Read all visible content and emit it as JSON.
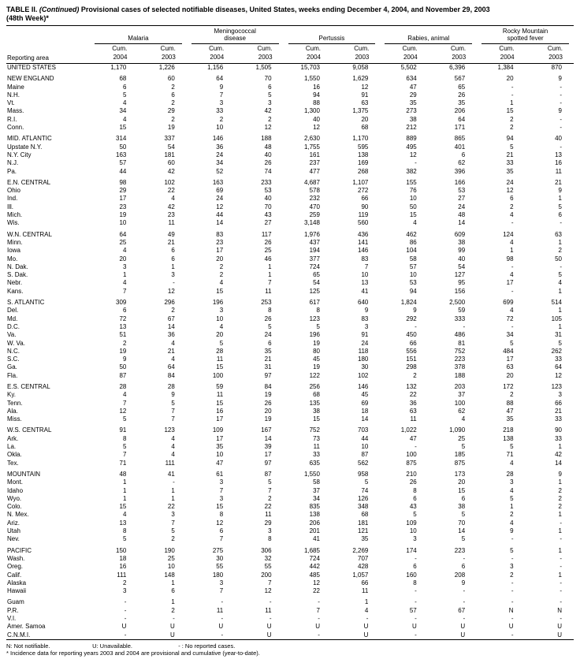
{
  "title": {
    "table_label": "TABLE II.",
    "continued": "(Continued)",
    "text": "Provisional cases of selected notifiable diseases, United States, weeks ending December 4, 2004, and November 29, 2003",
    "week": "(48th Week)*"
  },
  "header": {
    "reporting_area": "Reporting area",
    "cum_label": "Cum.",
    "diseases": [
      {
        "name": "malaria",
        "lines": [
          "Malaria"
        ],
        "years": [
          "2004",
          "2003"
        ]
      },
      {
        "name": "meningococcal-disease",
        "lines": [
          "Meningococcal",
          "disease"
        ],
        "years": [
          "2004",
          "2003"
        ]
      },
      {
        "name": "pertussis",
        "lines": [
          "Pertussis"
        ],
        "years": [
          "2004",
          "2003"
        ]
      },
      {
        "name": "rabies-animal",
        "lines": [
          "Rabies, animal"
        ],
        "years": [
          "2004",
          "2003"
        ]
      },
      {
        "name": "rocky-mountain-spotted-fever",
        "lines": [
          "Rocky Mountain",
          "spotted fever"
        ],
        "years": [
          "2004",
          "2003"
        ]
      }
    ]
  },
  "groups": [
    {
      "rows": [
        {
          "area": "UNITED STATES",
          "v": [
            "1,170",
            "1,226",
            "1,156",
            "1,505",
            "15,703",
            "9,058",
            "5,502",
            "6,396",
            "1,384",
            "870"
          ]
        }
      ]
    },
    {
      "rows": [
        {
          "area": "NEW ENGLAND",
          "v": [
            "68",
            "60",
            "64",
            "70",
            "1,550",
            "1,629",
            "634",
            "567",
            "20",
            "9"
          ]
        },
        {
          "area": "Maine",
          "v": [
            "6",
            "2",
            "9",
            "6",
            "16",
            "12",
            "47",
            "65",
            "-",
            "-"
          ]
        },
        {
          "area": "N.H.",
          "v": [
            "5",
            "6",
            "7",
            "5",
            "94",
            "91",
            "29",
            "26",
            "-",
            "-"
          ]
        },
        {
          "area": "Vt.",
          "v": [
            "4",
            "2",
            "3",
            "3",
            "88",
            "63",
            "35",
            "35",
            "1",
            "-"
          ]
        },
        {
          "area": "Mass.",
          "v": [
            "34",
            "29",
            "33",
            "42",
            "1,300",
            "1,375",
            "273",
            "206",
            "15",
            "9"
          ]
        },
        {
          "area": "R.I.",
          "v": [
            "4",
            "2",
            "2",
            "2",
            "40",
            "20",
            "38",
            "64",
            "2",
            "-"
          ]
        },
        {
          "area": "Conn.",
          "v": [
            "15",
            "19",
            "10",
            "12",
            "12",
            "68",
            "212",
            "171",
            "2",
            "-"
          ]
        }
      ]
    },
    {
      "rows": [
        {
          "area": "MID. ATLANTIC",
          "v": [
            "314",
            "337",
            "146",
            "188",
            "2,630",
            "1,170",
            "889",
            "865",
            "94",
            "40"
          ]
        },
        {
          "area": "Upstate N.Y.",
          "v": [
            "50",
            "54",
            "36",
            "48",
            "1,755",
            "595",
            "495",
            "401",
            "5",
            "-"
          ]
        },
        {
          "area": "N.Y. City",
          "v": [
            "163",
            "181",
            "24",
            "40",
            "161",
            "138",
            "12",
            "6",
            "21",
            "13"
          ]
        },
        {
          "area": "N.J.",
          "v": [
            "57",
            "60",
            "34",
            "26",
            "237",
            "169",
            "-",
            "62",
            "33",
            "16"
          ]
        },
        {
          "area": "Pa.",
          "v": [
            "44",
            "42",
            "52",
            "74",
            "477",
            "268",
            "382",
            "396",
            "35",
            "11"
          ]
        }
      ]
    },
    {
      "rows": [
        {
          "area": "E.N. CENTRAL",
          "v": [
            "98",
            "102",
            "163",
            "233",
            "4,687",
            "1,107",
            "155",
            "166",
            "24",
            "21"
          ]
        },
        {
          "area": "Ohio",
          "v": [
            "29",
            "22",
            "69",
            "53",
            "578",
            "272",
            "76",
            "53",
            "12",
            "9"
          ]
        },
        {
          "area": "Ind.",
          "v": [
            "17",
            "4",
            "24",
            "40",
            "232",
            "66",
            "10",
            "27",
            "6",
            "1"
          ]
        },
        {
          "area": "Ill.",
          "v": [
            "23",
            "42",
            "12",
            "70",
            "470",
            "90",
            "50",
            "24",
            "2",
            "5"
          ]
        },
        {
          "area": "Mich.",
          "v": [
            "19",
            "23",
            "44",
            "43",
            "259",
            "119",
            "15",
            "48",
            "4",
            "6"
          ]
        },
        {
          "area": "Wis.",
          "v": [
            "10",
            "11",
            "14",
            "27",
            "3,148",
            "560",
            "4",
            "14",
            "-",
            "-"
          ]
        }
      ]
    },
    {
      "rows": [
        {
          "area": "W.N. CENTRAL",
          "v": [
            "64",
            "49",
            "83",
            "117",
            "1,976",
            "436",
            "462",
            "609",
            "124",
            "63"
          ]
        },
        {
          "area": "Minn.",
          "v": [
            "25",
            "21",
            "23",
            "26",
            "437",
            "141",
            "86",
            "38",
            "4",
            "1"
          ]
        },
        {
          "area": "Iowa",
          "v": [
            "4",
            "6",
            "17",
            "25",
            "194",
            "146",
            "104",
            "99",
            "1",
            "2"
          ]
        },
        {
          "area": "Mo.",
          "v": [
            "20",
            "6",
            "20",
            "46",
            "377",
            "83",
            "58",
            "40",
            "98",
            "50"
          ]
        },
        {
          "area": "N. Dak.",
          "v": [
            "3",
            "1",
            "2",
            "1",
            "724",
            "7",
            "57",
            "54",
            "-",
            "-"
          ]
        },
        {
          "area": "S. Dak.",
          "v": [
            "1",
            "3",
            "2",
            "1",
            "65",
            "10",
            "10",
            "127",
            "4",
            "5"
          ]
        },
        {
          "area": "Nebr.",
          "v": [
            "4",
            "-",
            "4",
            "7",
            "54",
            "13",
            "53",
            "95",
            "17",
            "4"
          ]
        },
        {
          "area": "Kans.",
          "v": [
            "7",
            "12",
            "15",
            "11",
            "125",
            "41",
            "94",
            "156",
            "-",
            "1"
          ]
        }
      ]
    },
    {
      "rows": [
        {
          "area": "S. ATLANTIC",
          "v": [
            "309",
            "296",
            "196",
            "253",
            "617",
            "640",
            "1,824",
            "2,500",
            "699",
            "514"
          ]
        },
        {
          "area": "Del.",
          "v": [
            "6",
            "2",
            "3",
            "8",
            "8",
            "9",
            "9",
            "59",
            "4",
            "1"
          ]
        },
        {
          "area": "Md.",
          "v": [
            "72",
            "67",
            "10",
            "26",
            "123",
            "83",
            "292",
            "333",
            "72",
            "105"
          ]
        },
        {
          "area": "D.C.",
          "v": [
            "13",
            "14",
            "4",
            "5",
            "5",
            "3",
            "-",
            "-",
            "-",
            "1"
          ]
        },
        {
          "area": "Va.",
          "v": [
            "51",
            "36",
            "20",
            "24",
            "196",
            "91",
            "450",
            "486",
            "34",
            "31"
          ]
        },
        {
          "area": "W. Va.",
          "v": [
            "2",
            "4",
            "5",
            "6",
            "19",
            "24",
            "66",
            "81",
            "5",
            "5"
          ]
        },
        {
          "area": "N.C.",
          "v": [
            "19",
            "21",
            "28",
            "35",
            "80",
            "118",
            "556",
            "752",
            "484",
            "262"
          ]
        },
        {
          "area": "S.C.",
          "v": [
            "9",
            "4",
            "11",
            "21",
            "45",
            "180",
            "151",
            "223",
            "17",
            "33"
          ]
        },
        {
          "area": "Ga.",
          "v": [
            "50",
            "64",
            "15",
            "31",
            "19",
            "30",
            "298",
            "378",
            "63",
            "64"
          ]
        },
        {
          "area": "Fla.",
          "v": [
            "87",
            "84",
            "100",
            "97",
            "122",
            "102",
            "2",
            "188",
            "20",
            "12"
          ]
        }
      ]
    },
    {
      "rows": [
        {
          "area": "E.S. CENTRAL",
          "v": [
            "28",
            "28",
            "59",
            "84",
            "256",
            "146",
            "132",
            "203",
            "172",
            "123"
          ]
        },
        {
          "area": "Ky.",
          "v": [
            "4",
            "9",
            "11",
            "19",
            "68",
            "45",
            "22",
            "37",
            "2",
            "3"
          ]
        },
        {
          "area": "Tenn.",
          "v": [
            "7",
            "5",
            "15",
            "26",
            "135",
            "69",
            "36",
            "100",
            "88",
            "66"
          ]
        },
        {
          "area": "Ala.",
          "v": [
            "12",
            "7",
            "16",
            "20",
            "38",
            "18",
            "63",
            "62",
            "47",
            "21"
          ]
        },
        {
          "area": "Miss.",
          "v": [
            "5",
            "7",
            "17",
            "19",
            "15",
            "14",
            "11",
            "4",
            "35",
            "33"
          ]
        }
      ]
    },
    {
      "rows": [
        {
          "area": "W.S. CENTRAL",
          "v": [
            "91",
            "123",
            "109",
            "167",
            "752",
            "703",
            "1,022",
            "1,090",
            "218",
            "90"
          ]
        },
        {
          "area": "Ark.",
          "v": [
            "8",
            "4",
            "17",
            "14",
            "73",
            "44",
            "47",
            "25",
            "138",
            "33"
          ]
        },
        {
          "area": "La.",
          "v": [
            "5",
            "4",
            "35",
            "39",
            "11",
            "10",
            "-",
            "5",
            "5",
            "1"
          ]
        },
        {
          "area": "Okla.",
          "v": [
            "7",
            "4",
            "10",
            "17",
            "33",
            "87",
            "100",
            "185",
            "71",
            "42"
          ]
        },
        {
          "area": "Tex.",
          "v": [
            "71",
            "111",
            "47",
            "97",
            "635",
            "562",
            "875",
            "875",
            "4",
            "14"
          ]
        }
      ]
    },
    {
      "rows": [
        {
          "area": "MOUNTAIN",
          "v": [
            "48",
            "41",
            "61",
            "87",
            "1,550",
            "958",
            "210",
            "173",
            "28",
            "9"
          ]
        },
        {
          "area": "Mont.",
          "v": [
            "1",
            "-",
            "3",
            "5",
            "58",
            "5",
            "26",
            "20",
            "3",
            "1"
          ]
        },
        {
          "area": "Idaho",
          "v": [
            "1",
            "1",
            "7",
            "7",
            "37",
            "74",
            "8",
            "15",
            "4",
            "2"
          ]
        },
        {
          "area": "Wyo.",
          "v": [
            "1",
            "1",
            "3",
            "2",
            "34",
            "126",
            "6",
            "6",
            "5",
            "2"
          ]
        },
        {
          "area": "Colo.",
          "v": [
            "15",
            "22",
            "15",
            "22",
            "835",
            "348",
            "43",
            "38",
            "1",
            "2"
          ]
        },
        {
          "area": "N. Mex.",
          "v": [
            "4",
            "3",
            "8",
            "11",
            "138",
            "68",
            "5",
            "5",
            "2",
            "1"
          ]
        },
        {
          "area": "Ariz.",
          "v": [
            "13",
            "7",
            "12",
            "29",
            "206",
            "181",
            "109",
            "70",
            "4",
            "-"
          ]
        },
        {
          "area": "Utah",
          "v": [
            "8",
            "5",
            "6",
            "3",
            "201",
            "121",
            "10",
            "14",
            "9",
            "1"
          ]
        },
        {
          "area": "Nev.",
          "v": [
            "5",
            "2",
            "7",
            "8",
            "41",
            "35",
            "3",
            "5",
            "-",
            "-"
          ]
        }
      ]
    },
    {
      "rows": [
        {
          "area": "PACIFIC",
          "v": [
            "150",
            "190",
            "275",
            "306",
            "1,685",
            "2,269",
            "174",
            "223",
            "5",
            "1"
          ]
        },
        {
          "area": "Wash.",
          "v": [
            "18",
            "25",
            "30",
            "32",
            "724",
            "707",
            "-",
            "-",
            "-",
            "-"
          ]
        },
        {
          "area": "Oreg.",
          "v": [
            "16",
            "10",
            "55",
            "55",
            "442",
            "428",
            "6",
            "6",
            "3",
            "-"
          ]
        },
        {
          "area": "Calif.",
          "v": [
            "111",
            "148",
            "180",
            "200",
            "485",
            "1,057",
            "160",
            "208",
            "2",
            "1"
          ]
        },
        {
          "area": "Alaska",
          "v": [
            "2",
            "1",
            "3",
            "7",
            "12",
            "66",
            "8",
            "9",
            "-",
            "-"
          ]
        },
        {
          "area": "Hawaii",
          "v": [
            "3",
            "6",
            "7",
            "12",
            "22",
            "11",
            "-",
            "-",
            "-",
            "-"
          ]
        }
      ]
    },
    {
      "rows": [
        {
          "area": "Guam",
          "v": [
            "-",
            "1",
            "-",
            "-",
            "-",
            "1",
            "-",
            "-",
            "-",
            "-"
          ]
        },
        {
          "area": "P.R.",
          "v": [
            "-",
            "2",
            "11",
            "11",
            "7",
            "4",
            "57",
            "67",
            "N",
            "N"
          ]
        },
        {
          "area": "V.I.",
          "v": [
            "-",
            "-",
            "-",
            "-",
            "-",
            "-",
            "-",
            "-",
            "-",
            "-"
          ]
        },
        {
          "area": "Amer. Samoa",
          "v": [
            "U",
            "U",
            "U",
            "U",
            "U",
            "U",
            "U",
            "U",
            "U",
            "U"
          ]
        },
        {
          "area": "C.N.M.I.",
          "v": [
            "-",
            "U",
            "-",
            "U",
            "-",
            "U",
            "-",
            "U",
            "-",
            "U"
          ]
        }
      ]
    }
  ],
  "footnotes": {
    "symbols": [
      "N: Not notifiable.",
      "U: Unavailable.",
      "- : No reported cases."
    ],
    "asterisk": "* Incidence data for reporting years 2003 and 2004 are provisional and cumulative (year-to-date)."
  }
}
